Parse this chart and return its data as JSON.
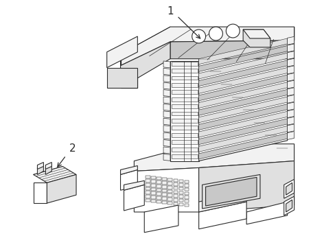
{
  "background_color": "#ffffff",
  "line_color": "#2a2a2a",
  "line_width": 0.8,
  "fill_white": "#ffffff",
  "fill_light": "#f2f2f2",
  "fill_mid": "#e0e0e0",
  "fill_dark": "#c8c8c8",
  "fill_darkest": "#b0b0b0",
  "label1_text": "1",
  "label2_text": "2",
  "figsize": [
    4.89,
    3.6
  ],
  "dpi": 100
}
